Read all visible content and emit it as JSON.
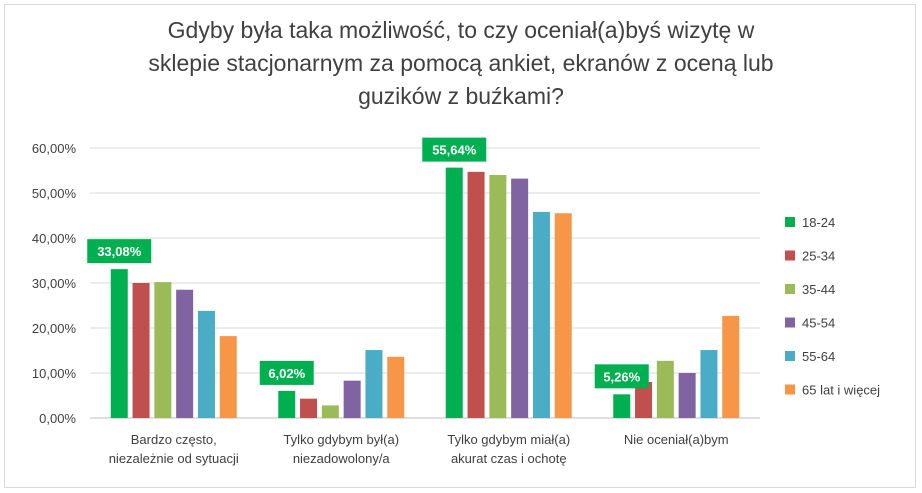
{
  "chart_data": {
    "type": "bar",
    "title_lines": [
      "Gdyby była taka możliwość, to czy oceniał(a)byś wizytę w",
      "sklepie stacjonarnym za pomocą ankiet, ekranów z oceną lub",
      "guzików z buźkami?"
    ],
    "categories": [
      [
        "Bardzo często,",
        "niezależnie od sytuacji"
      ],
      [
        "Tylko gdybym był(a)",
        "niezadowolony/a"
      ],
      [
        "Tylko gdybym miał(a)",
        "akurat czas i ochotę"
      ],
      [
        "Nie oceniał(a)bym"
      ]
    ],
    "series": [
      {
        "name": "18-24",
        "color": "#00b050",
        "values": [
          33.08,
          6.02,
          55.64,
          5.26
        ]
      },
      {
        "name": "25-34",
        "color": "#c0504d",
        "values": [
          30.0,
          4.3,
          54.7,
          8.0
        ]
      },
      {
        "name": "35-44",
        "color": "#9bbb59",
        "values": [
          30.2,
          2.8,
          54.0,
          12.7
        ]
      },
      {
        "name": "45-54",
        "color": "#8064a2",
        "values": [
          28.5,
          8.3,
          53.2,
          10.0
        ]
      },
      {
        "name": "55-64",
        "color": "#4bacc6",
        "values": [
          23.8,
          15.1,
          45.8,
          15.1
        ]
      },
      {
        "name": "65 lat i więcej",
        "color": "#f79646",
        "values": [
          18.2,
          13.6,
          45.5,
          22.7
        ]
      }
    ],
    "yticks": [
      "0,00%",
      "10,00%",
      "20,00%",
      "30,00%",
      "40,00%",
      "50,00%",
      "60,00%"
    ],
    "ylim": [
      0,
      60
    ],
    "data_labels": [
      {
        "category": 0,
        "series": 0,
        "text": "33,08%"
      },
      {
        "category": 1,
        "series": 0,
        "text": "6,02%"
      },
      {
        "category": 2,
        "series": 0,
        "text": "55,64%"
      },
      {
        "category": 3,
        "series": 0,
        "text": "5,26%"
      }
    ],
    "grid": true,
    "legend_position": "right"
  }
}
